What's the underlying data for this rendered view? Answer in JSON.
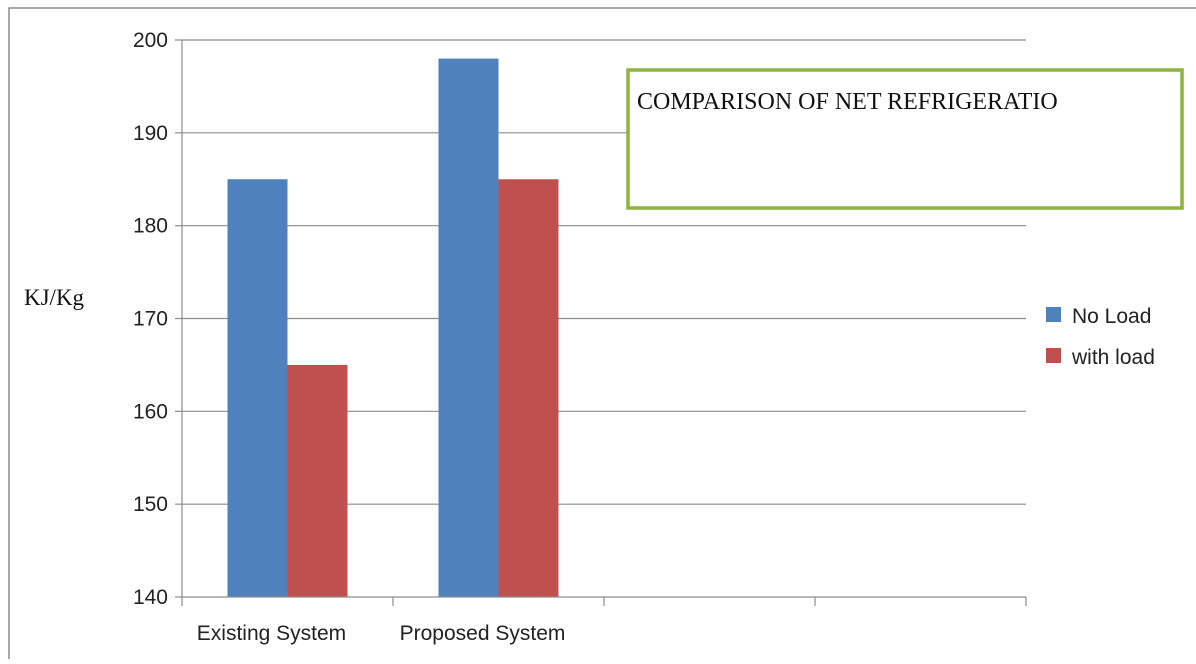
{
  "chart_data": {
    "type": "bar",
    "title": "COMPARISON OF NET REFRIGERATIO",
    "xlabel": "",
    "ylabel": "KJ/Kg",
    "categories": [
      "Existing System",
      "Proposed System",
      "",
      ""
    ],
    "series": [
      {
        "name": "No Load",
        "color": "#4f81bd",
        "values": [
          185,
          198,
          null,
          null
        ]
      },
      {
        "name": "with load",
        "color": "#c0504d",
        "values": [
          165,
          185,
          null,
          null
        ]
      }
    ],
    "ylim": [
      140,
      200
    ],
    "yticks": [
      140,
      150,
      160,
      170,
      180,
      190,
      200
    ],
    "grid": true,
    "legend": "right",
    "title_box_color": "#8db43c"
  }
}
